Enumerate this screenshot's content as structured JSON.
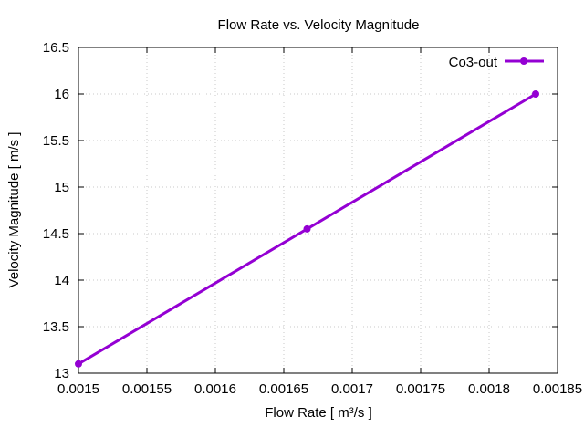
{
  "chart_data": {
    "type": "line",
    "title": "Flow Rate vs. Velocity Magnitude",
    "xlabel": "Flow Rate [ m³/s ]",
    "ylabel": "Velocity Magnitude [ m/s ]",
    "xlim": [
      0.0015,
      0.00185
    ],
    "ylim": [
      13,
      16.5
    ],
    "xticks": [
      0.0015,
      0.00155,
      0.0016,
      0.00165,
      0.0017,
      0.00175,
      0.0018,
      0.00185
    ],
    "xtick_labels": [
      "0.0015",
      "0.00155",
      "0.0016",
      "0.00165",
      "0.0017",
      "0.00175",
      "0.0018",
      "0.00185"
    ],
    "yticks": [
      13,
      13.5,
      14,
      14.5,
      15,
      15.5,
      16,
      16.5
    ],
    "ytick_labels": [
      "13",
      "13.5",
      "14",
      "14.5",
      "15",
      "15.5",
      "16",
      "16.5"
    ],
    "grid": true,
    "legend_position": "top-right",
    "series": [
      {
        "name": "Co3-out",
        "color": "#9400d3",
        "x": [
          0.0015,
          0.001667,
          0.001834
        ],
        "y": [
          13.1,
          14.55,
          16.0
        ]
      }
    ]
  }
}
